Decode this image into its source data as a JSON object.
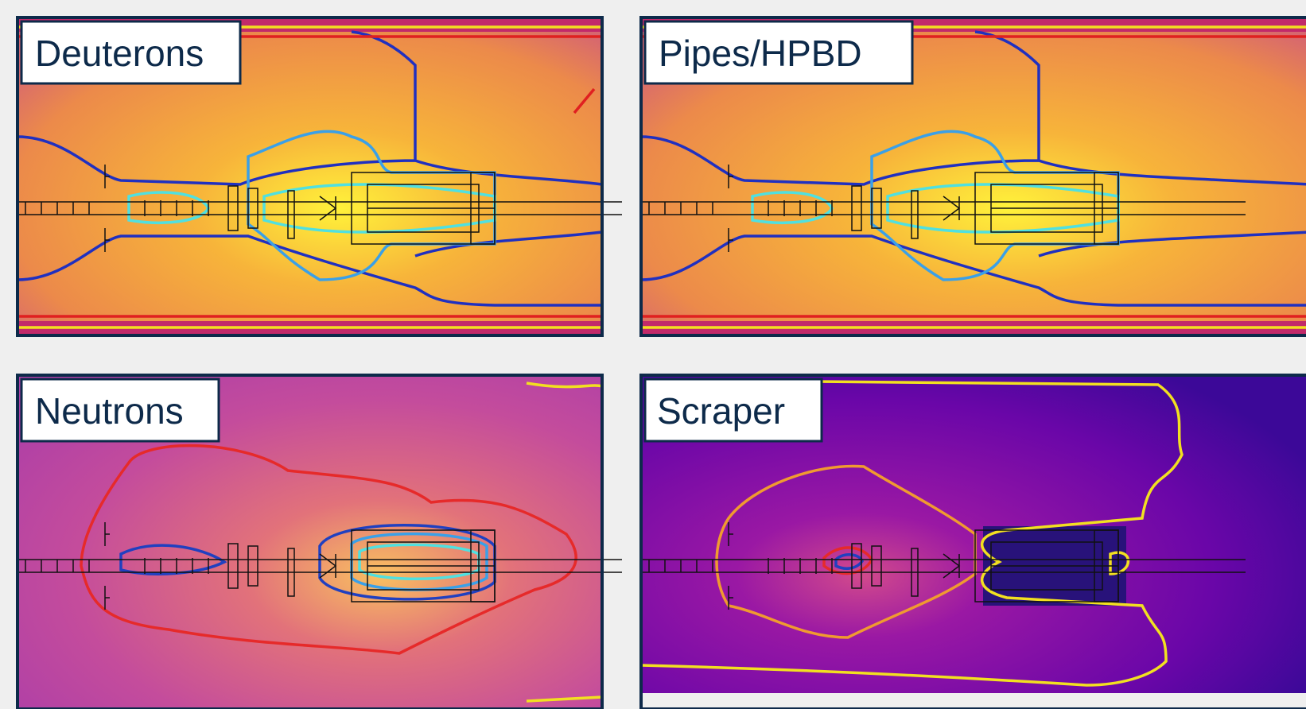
{
  "panels": [
    {
      "label": "Deuterons"
    },
    {
      "label": "Pipes/HPBD"
    },
    {
      "label": "Neutrons"
    },
    {
      "label": "Scraper"
    }
  ]
}
